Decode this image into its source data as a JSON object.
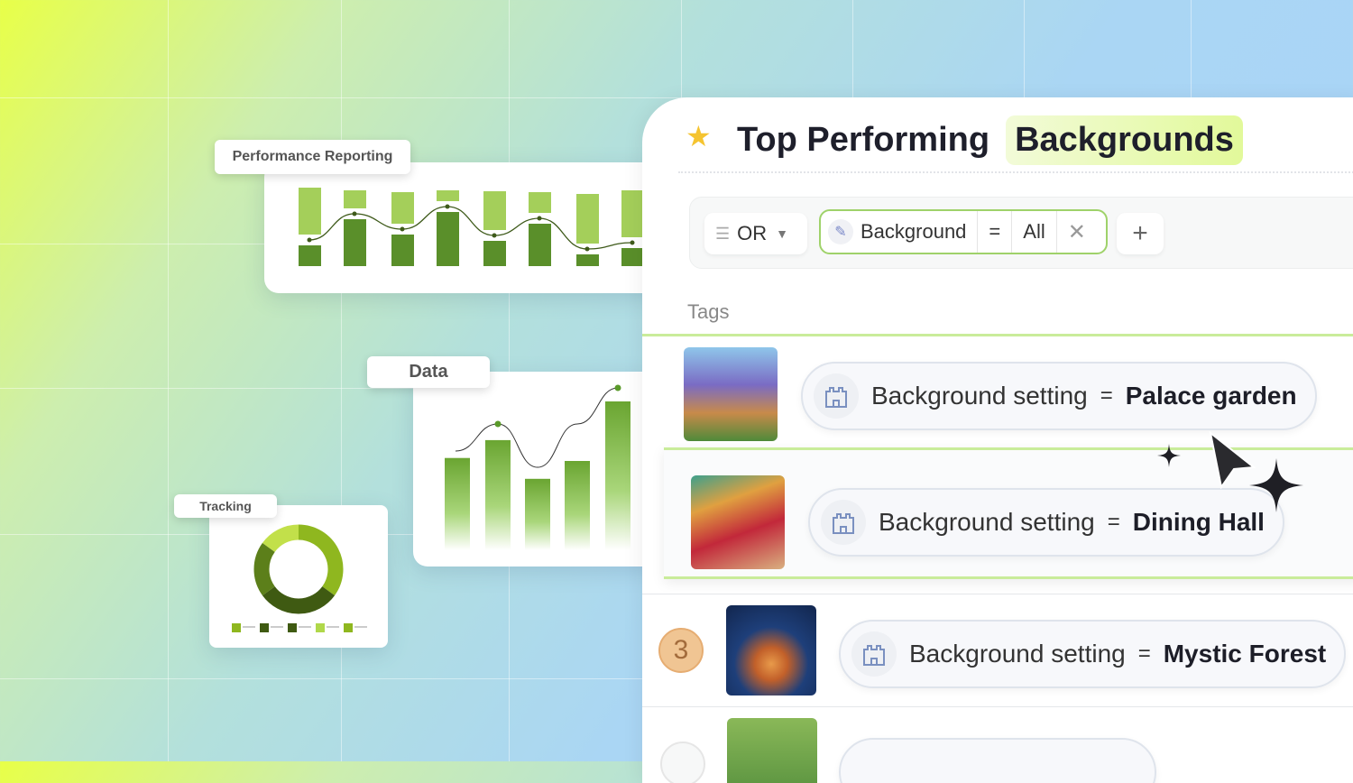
{
  "colors": {
    "accent": "#7cb342",
    "dark_green": "#5a8f2a",
    "light_green": "#a4cf5a",
    "highlight": "#e2f99a"
  },
  "perf_card": {
    "label": "Performance Reporting"
  },
  "data_card": {
    "label": "Data"
  },
  "tracking_card": {
    "label": "Tracking"
  },
  "chart_data": [
    {
      "type": "bar",
      "stacked": true,
      "series": [
        {
          "values": [
            23,
            52,
            35,
            60,
            28,
            47,
            13,
            20
          ]
        },
        {
          "values": [
            52,
            20,
            35,
            12,
            43,
            23,
            55,
            52
          ]
        }
      ],
      "line": [
        30,
        57,
        43,
        67,
        35,
        54,
        23,
        30
      ]
    },
    {
      "type": "bar",
      "values": [
        62,
        74,
        48,
        60,
        100
      ],
      "line": [
        80,
        85,
        55,
        60,
        110
      ]
    },
    {
      "type": "pie",
      "donut": true,
      "values": [
        35,
        30,
        20,
        15
      ],
      "colors": [
        "#8fb71f",
        "#3f5a12",
        "#5c7f1a",
        "#c2e04a"
      ]
    }
  ],
  "panel": {
    "icon": "star-icon",
    "title": "Top Performing",
    "title_highlight": "Backgrounds",
    "filter": {
      "operator": "OR",
      "field": "Background",
      "eq": "=",
      "value": "All",
      "add": "+"
    },
    "tags_label": "Tags",
    "rows": [
      {
        "key": "Background setting",
        "eq": "=",
        "value": "Palace garden"
      },
      {
        "key": "Background setting",
        "eq": "=",
        "value": "Dining Hall"
      },
      {
        "rank": "3",
        "key": "Background setting",
        "eq": "=",
        "value": "Mystic Forest"
      }
    ]
  }
}
